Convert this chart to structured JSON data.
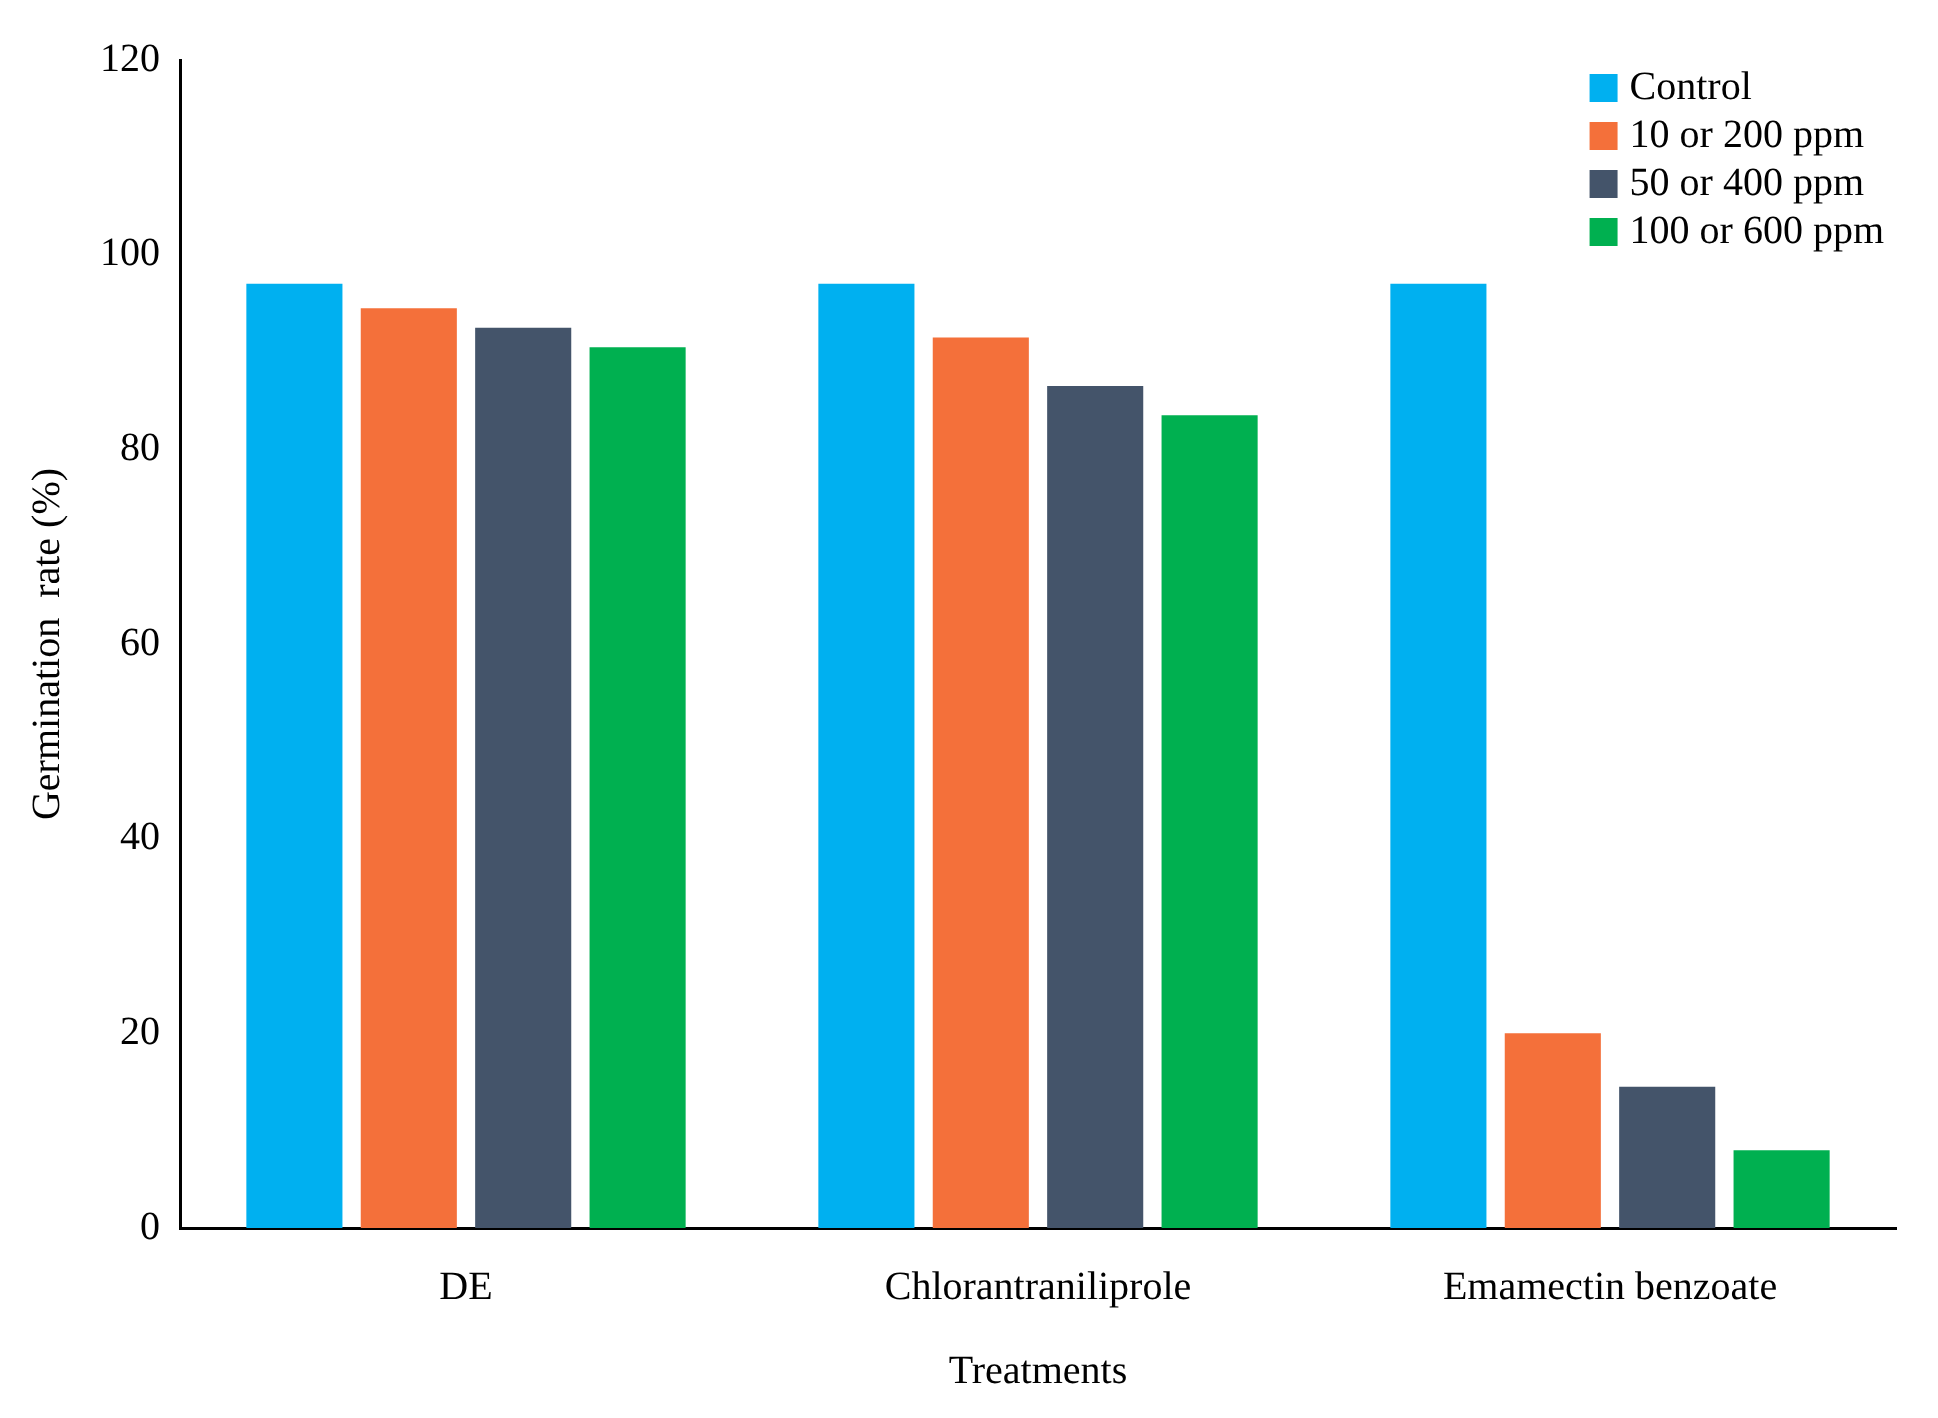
{
  "chart_data": {
    "type": "bar",
    "xlabel": "Treatments",
    "ylabel": "Germination  rate (%)",
    "categories": [
      "DE",
      "Chlorantraniliprole",
      "Emamectin benzoate"
    ],
    "series": [
      {
        "name": "Control",
        "color": "#00b0f0",
        "values": [
          97,
          97,
          97
        ]
      },
      {
        "name": "10 or 200 ppm",
        "color": "#f4703a",
        "values": [
          94.5,
          91.5,
          20
        ]
      },
      {
        "name": "50 or 400 ppm",
        "color": "#44546a",
        "values": [
          92.5,
          86.5,
          14.5
        ]
      },
      {
        "name": "100 or 600 ppm",
        "color": "#00b050",
        "values": [
          90.5,
          83.5,
          8
        ]
      }
    ],
    "ylim": [
      0,
      120
    ],
    "yticks": [
      0,
      20,
      40,
      60,
      80,
      100,
      120
    ],
    "grid": false,
    "legend": "top right"
  }
}
